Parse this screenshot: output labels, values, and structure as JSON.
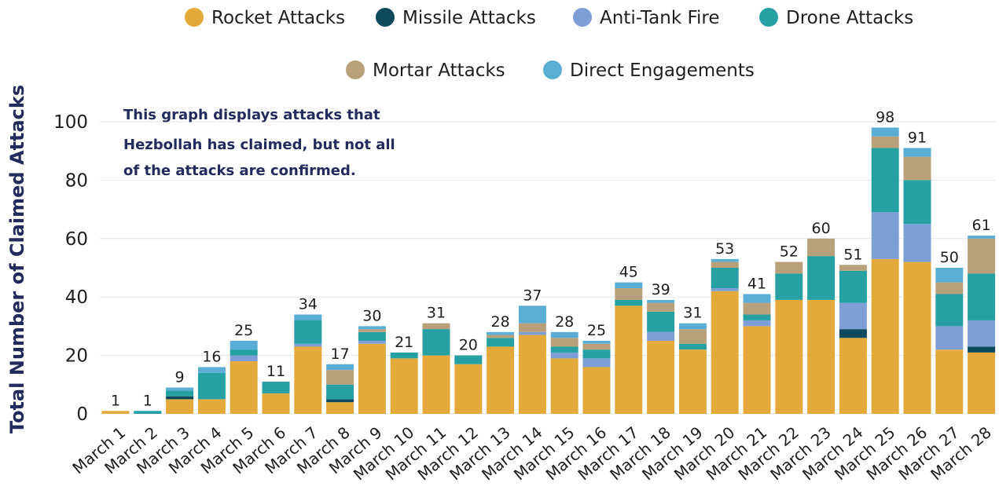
{
  "chart_data": {
    "type": "bar",
    "stacked": true,
    "ylabel": "Total Number of Claimed Attacks",
    "xlabel": "",
    "ylim": [
      0,
      100
    ],
    "yticks": [
      0,
      20,
      40,
      60,
      80,
      100
    ],
    "grid": true,
    "legend_position": "top",
    "note": [
      "This graph displays attacks that",
      "Hezbollah has claimed, but not all",
      "of the attacks are confirmed."
    ],
    "categories": [
      "March 1",
      "March 2",
      "March 3",
      "March 4",
      "March 5",
      "March 6",
      "March 7",
      "March 8",
      "March 9",
      "March 10",
      "March 11",
      "March 12",
      "March 13",
      "March 14",
      "March 15",
      "March 16",
      "March 17",
      "March 18",
      "March 19",
      "March 20",
      "March 21",
      "March 22",
      "March 23",
      "March 24",
      "March 25",
      "March 26",
      "March 27",
      "March 28"
    ],
    "totals": [
      1,
      1,
      9,
      16,
      25,
      11,
      34,
      17,
      30,
      21,
      31,
      20,
      28,
      37,
      28,
      25,
      45,
      39,
      31,
      53,
      41,
      52,
      60,
      51,
      98,
      91,
      50,
      61
    ],
    "series": [
      {
        "name": "Rocket Attacks",
        "color": "#e3a93a",
        "values": [
          1,
          0,
          5,
          5,
          18,
          7,
          23,
          4,
          24,
          19,
          20,
          17,
          23,
          27,
          19,
          16,
          37,
          25,
          22,
          42,
          30,
          39,
          39,
          26,
          53,
          52,
          22,
          21
        ]
      },
      {
        "name": "Missile Attacks",
        "color": "#0f4a5c",
        "values": [
          0,
          0,
          1,
          0,
          0,
          0,
          0,
          1,
          0,
          0,
          0,
          0,
          0,
          0,
          0,
          0,
          0,
          0,
          0,
          0,
          0,
          0,
          0,
          3,
          0,
          0,
          0,
          2
        ]
      },
      {
        "name": "Anti-Tank Fire",
        "color": "#7d9fd6",
        "values": [
          0,
          0,
          0,
          0,
          2,
          0,
          1,
          0,
          1,
          0,
          0,
          0,
          0,
          1,
          2,
          3,
          0,
          3,
          0,
          1,
          2,
          0,
          0,
          9,
          16,
          13,
          8,
          9
        ]
      },
      {
        "name": "Drone Attacks",
        "color": "#26a0a3",
        "values": [
          0,
          1,
          2,
          9,
          2,
          4,
          8,
          5,
          3,
          2,
          9,
          3,
          3,
          0,
          2,
          3,
          2,
          7,
          2,
          7,
          2,
          9,
          15,
          11,
          22,
          15,
          11,
          16
        ]
      },
      {
        "name": "Mortar Attacks",
        "color": "#b8a07a",
        "values": [
          0,
          0,
          0,
          0,
          0,
          0,
          0,
          5,
          1,
          0,
          2,
          0,
          1,
          3,
          3,
          2,
          4,
          3,
          5,
          2,
          4,
          4,
          6,
          2,
          4,
          8,
          4,
          12
        ]
      },
      {
        "name": "Direct Engagements",
        "color": "#5baed3",
        "values": [
          0,
          0,
          1,
          2,
          3,
          0,
          2,
          2,
          1,
          0,
          0,
          0,
          1,
          6,
          2,
          1,
          2,
          1,
          2,
          1,
          3,
          0,
          0,
          0,
          3,
          3,
          5,
          1
        ]
      }
    ]
  }
}
